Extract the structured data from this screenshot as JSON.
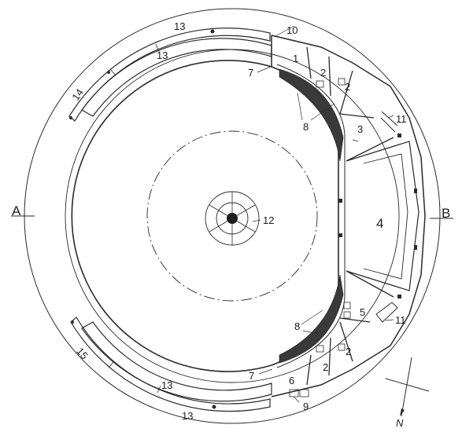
{
  "plan": {
    "room_labels": {
      "r1": "1",
      "r2a": "2",
      "r2b": "2",
      "r2c": "2",
      "r2d": "2",
      "r3": "3",
      "r4": "4",
      "r5": "5",
      "r6": "6",
      "l7a": "7",
      "l7b": "7",
      "l8a": "8",
      "l8b": "8",
      "l9": "9",
      "l10": "10",
      "l11a": "11",
      "l11b": "11",
      "l12": "12",
      "l13a": "13",
      "l13b": "13",
      "l13c": "13",
      "l13d": "13",
      "l14": "14",
      "l15": "15"
    },
    "section_left": "A",
    "section_right": "B",
    "north": "N"
  }
}
